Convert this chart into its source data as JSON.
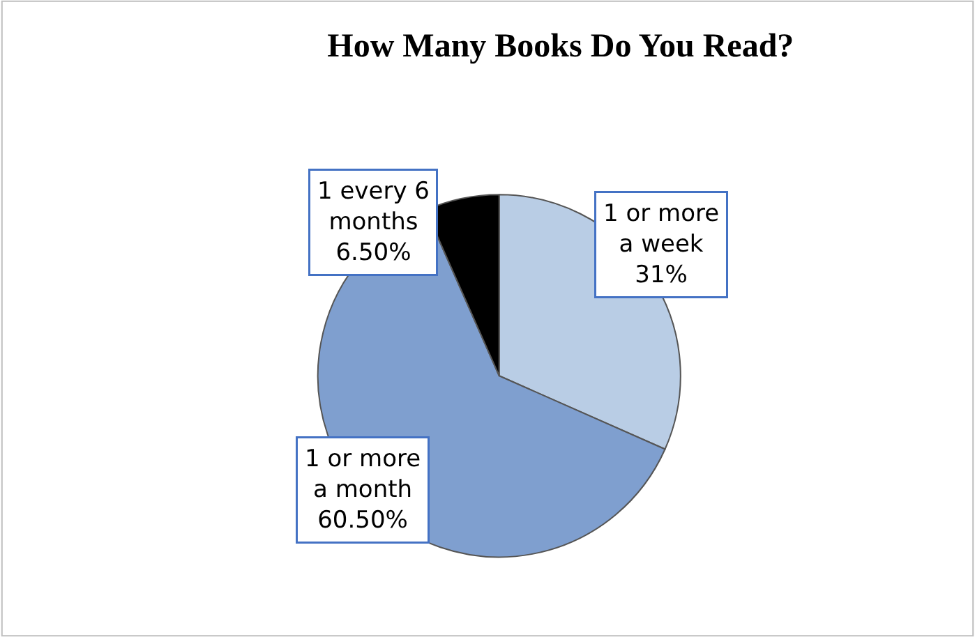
{
  "chart_data": {
    "type": "pie",
    "title": "How Many Books Do You Read?",
    "categories": [
      "1 or more a week",
      "1 or more a month",
      "1 every 6 months"
    ],
    "values": [
      31,
      60.5,
      6.5
    ],
    "value_labels": [
      "31%",
      "60.50%",
      "6.50%"
    ],
    "colors": [
      "#b9cde5",
      "#7f9fcf",
      "#000000"
    ]
  }
}
